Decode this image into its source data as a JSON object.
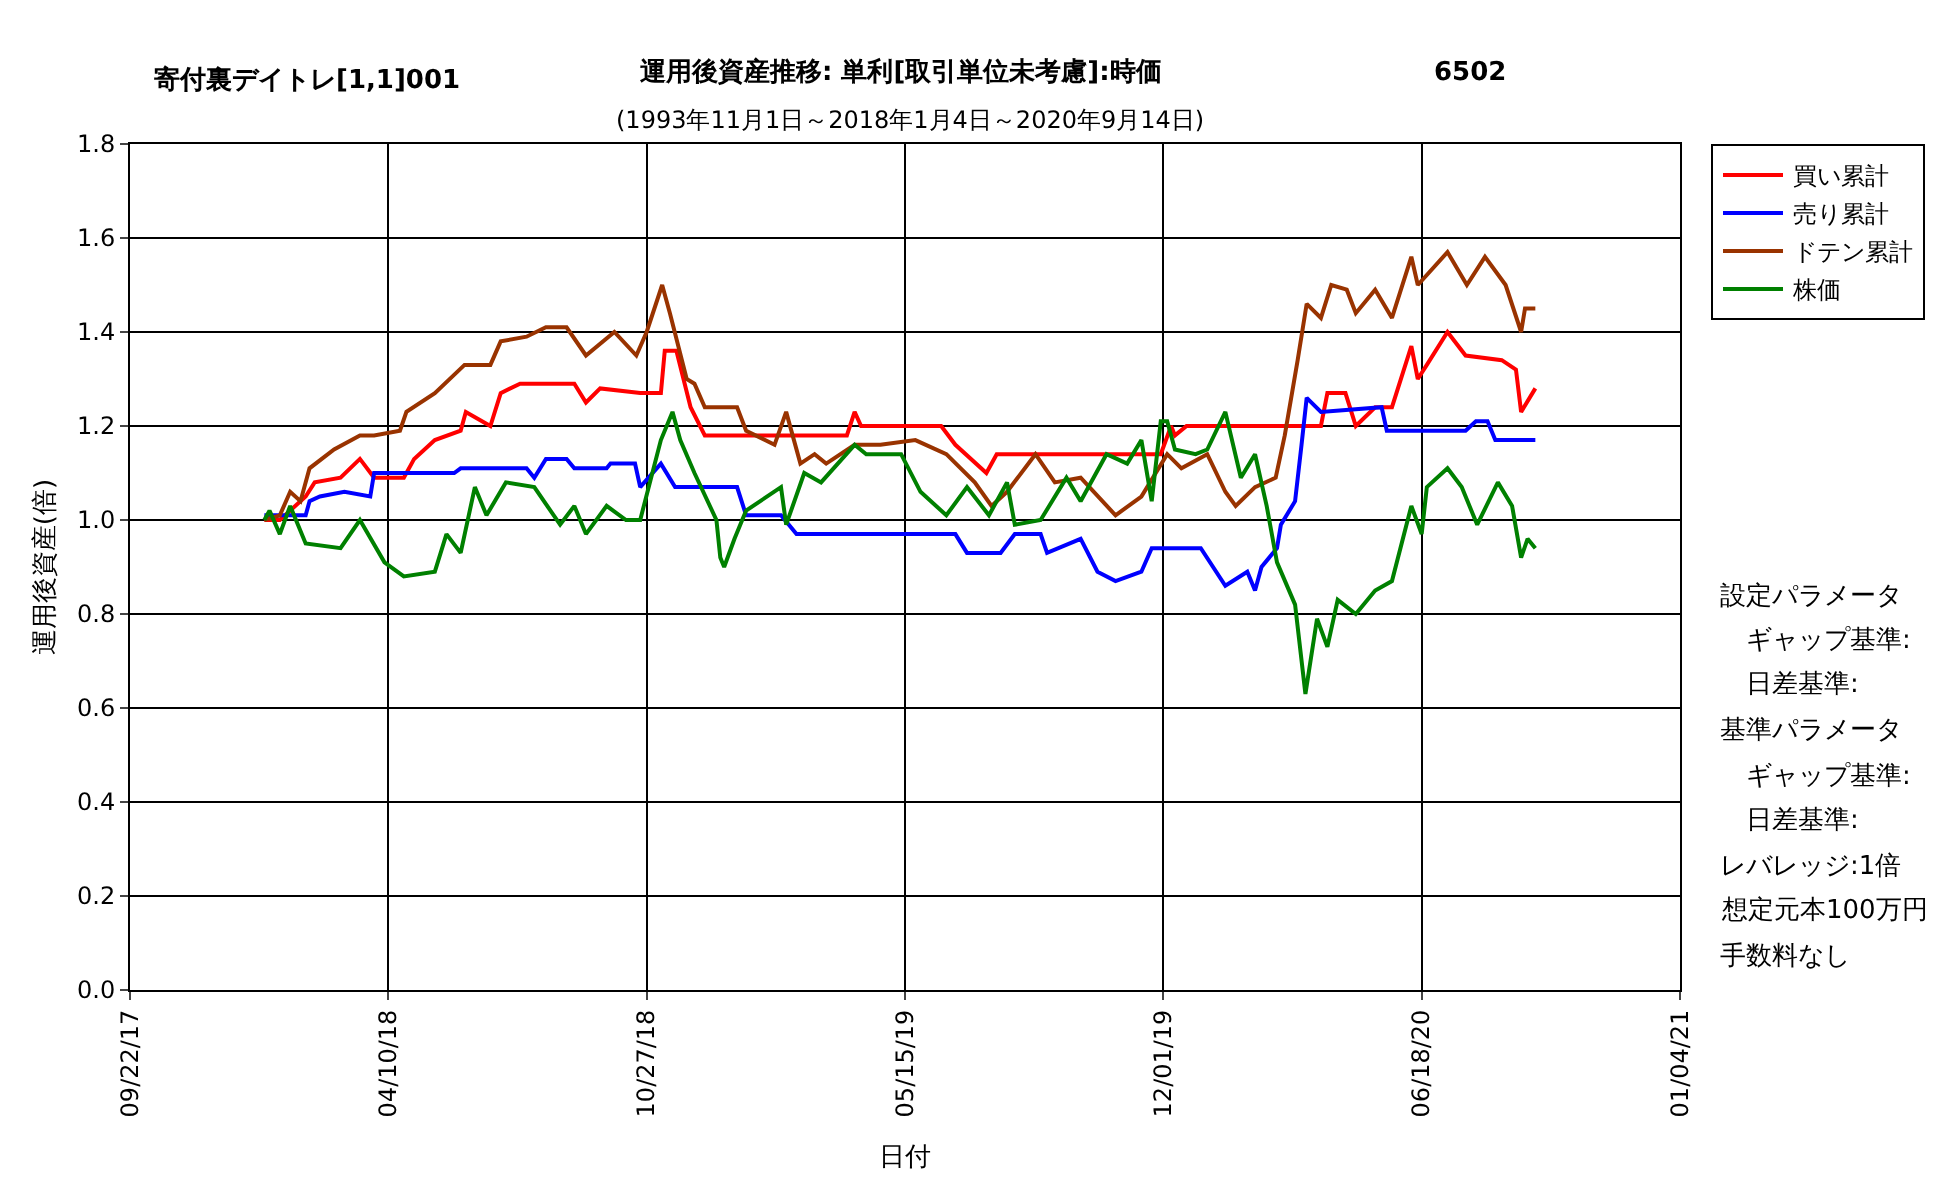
{
  "chart_data": {
    "type": "line",
    "title": "運用後資産推移: 単利[取引単位未考慮]:時価",
    "subtitle": "(1993年11月1日～2018年1月4日～2020年9月14日)",
    "xlabel": "日付",
    "ylabel": "運用後資産(倍)",
    "annotations": [
      "寄付裏デイトレ[1,1]001",
      "6502",
      "設定パラメータ",
      "　ギャップ基準:",
      "　日差基準:",
      "基準パラメータ",
      "　ギャップ基準:",
      "　日差基準:",
      "レバレッジ:1倍",
      "想定元本100万円",
      "手数料なし"
    ],
    "xlim": [
      "2017-09-22",
      "2021-01-04"
    ],
    "xticks": [
      {
        "value": "2017-09-22",
        "label": "09/22/17"
      },
      {
        "value": "2018-04-10",
        "label": "04/10/18"
      },
      {
        "value": "2018-10-27",
        "label": "10/27/18"
      },
      {
        "value": "2019-05-15",
        "label": "05/15/19"
      },
      {
        "value": "2019-12-01",
        "label": "12/01/19"
      },
      {
        "value": "2020-06-18",
        "label": "06/18/20"
      },
      {
        "value": "2021-01-04",
        "label": "01/04/21"
      }
    ],
    "ylim": [
      0,
      1.8
    ],
    "yticks": [
      {
        "value": 0,
        "label": "0.0"
      },
      {
        "value": 0.2,
        "label": "0.2"
      },
      {
        "value": 0.4,
        "label": "0.4"
      },
      {
        "value": 0.6,
        "label": "0.6"
      },
      {
        "value": 0.8,
        "label": "0.8"
      },
      {
        "value": 1,
        "label": "1.0"
      },
      {
        "value": 1.2,
        "label": "1.2"
      },
      {
        "value": 1.4,
        "label": "1.4"
      },
      {
        "value": 1.6,
        "label": "1.6"
      },
      {
        "value": 1.8,
        "label": "1.8"
      }
    ],
    "grid": true,
    "legend": "top right",
    "marker": "none",
    "line_style": "solid",
    "series": [
      {
        "name": "買い累計",
        "color": "#ff0000",
        "x": [
          "2018-01-04",
          "2018-01-16",
          "2018-02-05",
          "2018-02-12",
          "2018-03-04",
          "2018-03-19",
          "2018-03-30",
          "2018-04-22",
          "2018-04-30",
          "2018-05-16",
          "2018-06-05",
          "2018-06-09",
          "2018-06-28",
          "2018-07-06",
          "2018-07-21",
          "2018-09-01",
          "2018-09-10",
          "2018-09-21",
          "2018-10-22",
          "2018-11-07",
          "2018-11-10",
          "2018-11-19",
          "2018-11-30",
          "2018-12-11",
          "2019-03-31",
          "2019-04-06",
          "2019-04-11",
          "2019-06-12",
          "2019-06-23",
          "2019-07-17",
          "2019-07-25",
          "2019-11-29",
          "2019-12-07",
          "2019-12-10",
          "2019-12-19",
          "2020-02-15",
          "2020-04-01",
          "2020-04-06",
          "2020-04-20",
          "2020-04-28",
          "2020-05-13",
          "2020-05-26",
          "2020-06-10",
          "2020-06-15",
          "2020-06-22",
          "2020-07-08",
          "2020-07-22",
          "2020-08-19",
          "2020-08-30",
          "2020-09-03",
          "2020-09-14"
        ],
        "values": [
          1.0,
          1.0,
          1.05,
          1.08,
          1.09,
          1.13,
          1.09,
          1.09,
          1.13,
          1.17,
          1.19,
          1.23,
          1.2,
          1.27,
          1.29,
          1.29,
          1.25,
          1.28,
          1.27,
          1.27,
          1.36,
          1.36,
          1.24,
          1.18,
          1.18,
          1.23,
          1.2,
          1.2,
          1.16,
          1.1,
          1.14,
          1.14,
          1.2,
          1.18,
          1.2,
          1.2,
          1.2,
          1.27,
          1.27,
          1.2,
          1.24,
          1.24,
          1.37,
          1.3,
          1.33,
          1.4,
          1.35,
          1.34,
          1.32,
          1.23,
          1.28
        ]
      },
      {
        "name": "売り累計",
        "color": "#0000ff",
        "x": [
          "2018-01-04",
          "2018-02-05",
          "2018-02-08",
          "2018-02-16",
          "2018-03-07",
          "2018-03-27",
          "2018-03-30",
          "2018-05-31",
          "2018-06-05",
          "2018-07-26",
          "2018-08-01",
          "2018-08-10",
          "2018-08-26",
          "2018-09-01",
          "2018-09-26",
          "2018-09-29",
          "2018-10-18",
          "2018-10-22",
          "2018-11-07",
          "2018-11-18",
          "2019-01-05",
          "2019-01-12",
          "2019-02-08",
          "2019-02-20",
          "2019-03-31",
          "2019-05-23",
          "2019-06-23",
          "2019-07-02",
          "2019-07-28",
          "2019-08-08",
          "2019-08-28",
          "2019-09-02",
          "2019-09-28",
          "2019-10-11",
          "2019-10-25",
          "2019-11-14",
          "2019-11-22",
          "2019-12-30",
          "2020-01-18",
          "2020-02-04",
          "2020-02-10",
          "2020-02-15",
          "2020-02-27",
          "2020-03-01",
          "2020-03-12",
          "2020-03-17",
          "2020-03-21",
          "2020-04-01",
          "2020-05-18",
          "2020-05-22",
          "2020-07-22",
          "2020-07-30",
          "2020-08-08",
          "2020-08-14",
          "2020-09-14"
        ],
        "values": [
          1.01,
          1.01,
          1.04,
          1.05,
          1.06,
          1.05,
          1.1,
          1.1,
          1.11,
          1.11,
          1.09,
          1.13,
          1.13,
          1.11,
          1.11,
          1.12,
          1.12,
          1.07,
          1.12,
          1.07,
          1.07,
          1.01,
          1.01,
          0.97,
          0.97,
          0.97,
          0.97,
          0.93,
          0.93,
          0.97,
          0.97,
          0.93,
          0.96,
          0.89,
          0.87,
          0.89,
          0.94,
          0.94,
          0.86,
          0.89,
          0.85,
          0.9,
          0.94,
          0.99,
          1.04,
          1.16,
          1.26,
          1.23,
          1.24,
          1.19,
          1.19,
          1.21,
          1.21,
          1.17,
          1.17
        ]
      },
      {
        "name": "ドテン累計",
        "color": "#993300",
        "x": [
          "2018-01-04",
          "2018-01-16",
          "2018-01-24",
          "2018-02-01",
          "2018-02-08",
          "2018-02-27",
          "2018-03-19",
          "2018-03-30",
          "2018-04-19",
          "2018-04-24",
          "2018-05-16",
          "2018-06-08",
          "2018-06-28",
          "2018-07-06",
          "2018-07-26",
          "2018-08-10",
          "2018-08-26",
          "2018-09-10",
          "2018-10-02",
          "2018-10-19",
          "2018-10-27",
          "2018-11-08",
          "2018-11-14",
          "2018-11-27",
          "2018-12-03",
          "2018-12-11",
          "2019-01-05",
          "2019-01-12",
          "2019-02-03",
          "2019-02-12",
          "2019-02-23",
          "2019-03-06",
          "2019-03-15",
          "2019-04-06",
          "2019-04-26",
          "2019-05-23",
          "2019-06-16",
          "2019-07-08",
          "2019-07-21",
          "2019-08-02",
          "2019-08-24",
          "2019-09-08",
          "2019-09-28",
          "2019-10-25",
          "2019-11-14",
          "2019-12-04",
          "2019-12-15",
          "2020-01-04",
          "2020-01-18",
          "2020-01-26",
          "2020-02-10",
          "2020-02-26",
          "2020-03-04",
          "2020-03-14",
          "2020-03-21",
          "2020-04-01",
          "2020-04-09",
          "2020-04-21",
          "2020-04-28",
          "2020-05-13",
          "2020-05-26",
          "2020-06-10",
          "2020-06-15",
          "2020-07-08",
          "2020-07-23",
          "2020-08-06",
          "2020-08-22",
          "2020-09-03",
          "2020-09-06",
          "2020-09-14"
        ],
        "values": [
          1.0,
          1.01,
          1.06,
          1.04,
          1.11,
          1.15,
          1.18,
          1.18,
          1.19,
          1.23,
          1.27,
          1.33,
          1.33,
          1.38,
          1.39,
          1.41,
          1.41,
          1.35,
          1.4,
          1.35,
          1.4,
          1.5,
          1.44,
          1.3,
          1.29,
          1.24,
          1.24,
          1.19,
          1.16,
          1.23,
          1.12,
          1.14,
          1.12,
          1.16,
          1.16,
          1.17,
          1.14,
          1.08,
          1.03,
          1.06,
          1.14,
          1.08,
          1.09,
          1.01,
          1.05,
          1.14,
          1.11,
          1.14,
          1.06,
          1.03,
          1.07,
          1.09,
          1.18,
          1.34,
          1.46,
          1.43,
          1.5,
          1.49,
          1.44,
          1.49,
          1.43,
          1.56,
          1.5,
          1.57,
          1.5,
          1.56,
          1.5,
          1.4,
          1.45,
          1.45
        ]
      },
      {
        "name": "株価",
        "color": "#008000",
        "x": [
          "2018-01-04",
          "2018-01-08",
          "2018-01-16",
          "2018-01-24",
          "2018-02-05",
          "2018-03-04",
          "2018-03-19",
          "2018-04-07",
          "2018-04-22",
          "2018-05-16",
          "2018-05-25",
          "2018-06-05",
          "2018-06-16",
          "2018-06-25",
          "2018-07-10",
          "2018-08-01",
          "2018-08-21",
          "2018-09-01",
          "2018-09-10",
          "2018-09-26",
          "2018-10-11",
          "2018-10-22",
          "2018-11-07",
          "2018-11-16",
          "2018-11-22",
          "2018-12-03",
          "2018-12-20",
          "2018-12-23",
          "2018-12-26",
          "2019-01-03",
          "2019-01-12",
          "2019-02-08",
          "2019-02-12",
          "2019-02-26",
          "2019-03-11",
          "2019-04-06",
          "2019-04-15",
          "2019-05-12",
          "2019-05-27",
          "2019-06-16",
          "2019-07-02",
          "2019-07-19",
          "2019-08-02",
          "2019-08-08",
          "2019-08-28",
          "2019-09-17",
          "2019-09-28",
          "2019-10-18",
          "2019-11-03",
          "2019-11-14",
          "2019-11-22",
          "2019-11-29",
          "2019-12-04",
          "2019-12-10",
          "2019-12-26",
          "2020-01-04",
          "2020-01-18",
          "2020-01-30",
          "2020-02-10",
          "2020-02-19",
          "2020-02-27",
          "2020-03-12",
          "2020-03-20",
          "2020-03-29",
          "2020-04-06",
          "2020-04-14",
          "2020-04-28",
          "2020-05-13",
          "2020-05-26",
          "2020-06-10",
          "2020-06-18",
          "2020-06-22",
          "2020-07-08",
          "2020-07-19",
          "2020-07-31",
          "2020-08-16",
          "2020-08-27",
          "2020-09-03",
          "2020-09-08",
          "2020-09-14"
        ],
        "values": [
          1.0,
          1.02,
          0.97,
          1.03,
          0.95,
          0.94,
          1.0,
          0.91,
          0.88,
          0.89,
          0.97,
          0.93,
          1.07,
          1.01,
          1.08,
          1.07,
          0.99,
          1.03,
          0.97,
          1.03,
          1.0,
          1.0,
          1.17,
          1.23,
          1.17,
          1.1,
          1.0,
          0.92,
          0.9,
          0.96,
          1.02,
          1.07,
          0.99,
          1.1,
          1.08,
          1.16,
          1.14,
          1.14,
          1.06,
          1.01,
          1.07,
          1.01,
          1.08,
          0.99,
          1.0,
          1.09,
          1.04,
          1.14,
          1.12,
          1.17,
          1.04,
          1.21,
          1.21,
          1.15,
          1.14,
          1.15,
          1.23,
          1.09,
          1.14,
          1.03,
          0.91,
          0.82,
          0.63,
          0.79,
          0.73,
          0.83,
          0.8,
          0.85,
          0.87,
          1.03,
          0.97,
          1.07,
          1.11,
          1.07,
          0.99,
          1.08,
          1.03,
          0.92,
          0.96,
          0.94
        ]
      }
    ]
  }
}
